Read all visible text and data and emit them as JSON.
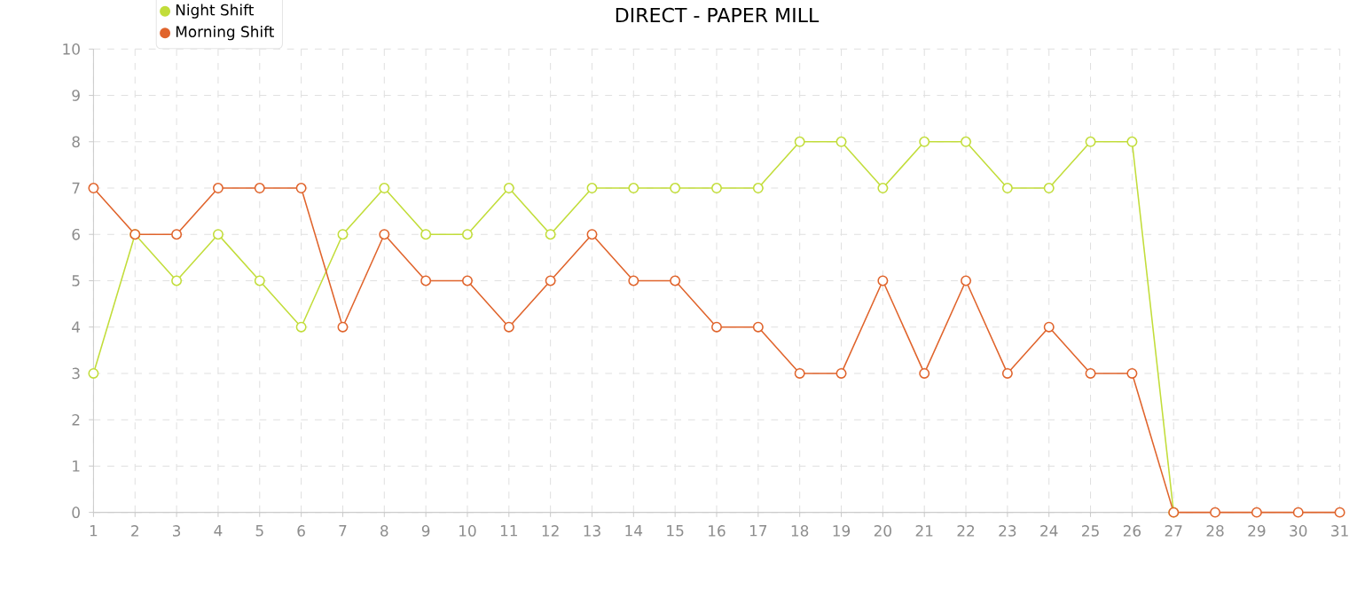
{
  "chart_data": {
    "type": "line",
    "title": "DIRECT - PAPER MILL",
    "x": [
      1,
      2,
      3,
      4,
      5,
      6,
      7,
      8,
      9,
      10,
      11,
      12,
      13,
      14,
      15,
      16,
      17,
      18,
      19,
      20,
      21,
      22,
      23,
      24,
      25,
      26,
      27,
      28,
      29,
      30,
      31
    ],
    "series": [
      {
        "name": "Night Shift",
        "color": "#c2dd3a",
        "values": [
          3,
          6,
          5,
          6,
          5,
          4,
          6,
          7,
          6,
          6,
          7,
          6,
          7,
          7,
          7,
          7,
          7,
          8,
          8,
          7,
          8,
          8,
          7,
          7,
          8,
          8,
          0,
          null,
          null,
          null,
          null
        ]
      },
      {
        "name": "Morning Shift",
        "color": "#e0642c",
        "values": [
          7,
          6,
          6,
          7,
          7,
          7,
          4,
          6,
          5,
          5,
          4,
          5,
          6,
          5,
          5,
          4,
          4,
          3,
          3,
          5,
          3,
          5,
          3,
          4,
          3,
          3,
          0,
          0,
          0,
          0,
          0
        ]
      }
    ],
    "xlim": [
      1,
      31
    ],
    "xticks": [
      1,
      2,
      3,
      4,
      5,
      6,
      7,
      8,
      9,
      10,
      11,
      12,
      13,
      14,
      15,
      16,
      17,
      18,
      19,
      20,
      21,
      22,
      23,
      24,
      25,
      26,
      27,
      28,
      29,
      30,
      31
    ],
    "ylim": [
      0,
      10
    ],
    "yticks": [
      0,
      1,
      2,
      3,
      4,
      5,
      6,
      7,
      8,
      9,
      10
    ],
    "grid": true,
    "legend": "top left",
    "marker": "circle",
    "line_style": "solid"
  }
}
